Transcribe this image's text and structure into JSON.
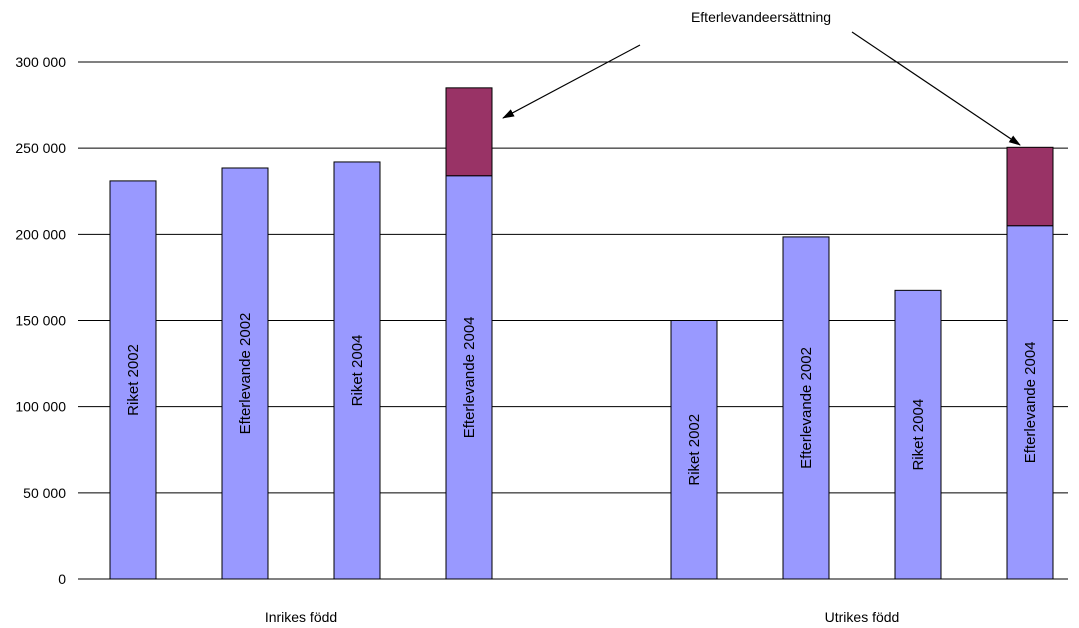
{
  "chart_data": {
    "type": "bar",
    "stacked": true,
    "groups": [
      {
        "label": "Inrikes född",
        "bars": [
          {
            "label": "Riket 2002",
            "value": 231000,
            "extra": 0
          },
          {
            "label": "Efterlevande 2002",
            "value": 238500,
            "extra": 0
          },
          {
            "label": "Riket 2004",
            "value": 242000,
            "extra": 0
          },
          {
            "label": "Efterlevande 2004",
            "value": 234000,
            "extra": 51000
          }
        ]
      },
      {
        "label": "Utrikes född",
        "bars": [
          {
            "label": "Riket 2002",
            "value": 150000,
            "extra": 0
          },
          {
            "label": "Efterlevande 2002",
            "value": 198500,
            "extra": 0
          },
          {
            "label": "Riket 2004",
            "value": 167500,
            "extra": 0
          },
          {
            "label": "Efterlevande 2004",
            "value": 205000,
            "extra": 45500
          }
        ]
      }
    ],
    "series": [
      {
        "name": "",
        "color": "#9999FF"
      },
      {
        "name": "Efterlevandeersättning",
        "color": "#993366"
      }
    ],
    "annotation": "Efterlevandeersättning",
    "ylim": [
      0,
      300000
    ],
    "yticks": [
      0,
      50000,
      100000,
      150000,
      200000,
      250000,
      300000
    ],
    "ytick_labels": [
      "0",
      "50 000",
      "100 000",
      "150 000",
      "200 000",
      "250 000",
      "300 000"
    ],
    "grid": true,
    "title": "",
    "xlabel": "",
    "ylabel": ""
  }
}
